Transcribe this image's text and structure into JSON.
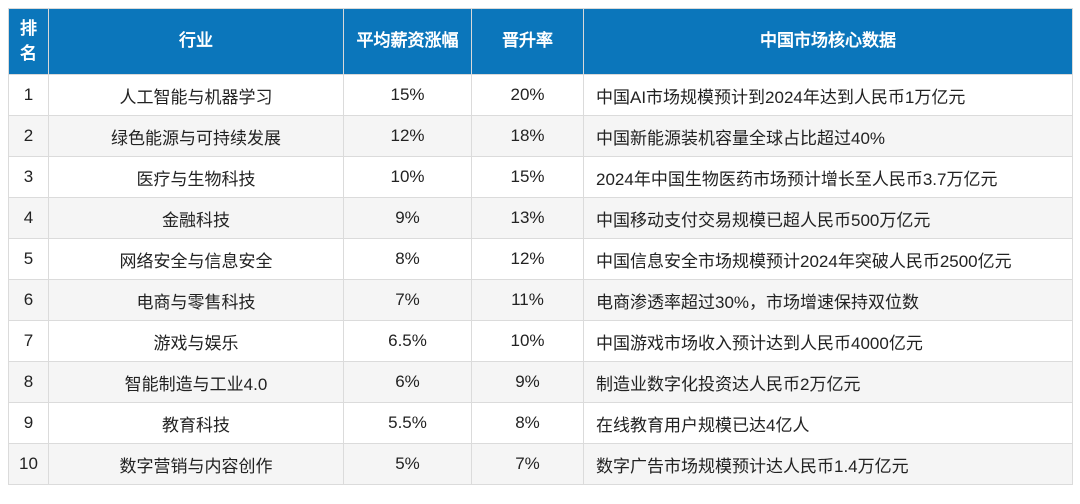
{
  "colors": {
    "header_bg": "#0B76BB",
    "header_text": "#FFFFFF",
    "row_bg": "#FFFFFF",
    "row_alt_bg": "#F5F5F5",
    "border": "#DBDBDB",
    "body_text": "#222222"
  },
  "chart_data": {
    "type": "table",
    "title": "",
    "columns": [
      "排名",
      "行业",
      "平均薪资涨幅",
      "晋升率",
      "中国市场核心数据"
    ],
    "rows": [
      [
        "1",
        "人工智能与机器学习",
        "15%",
        "20%",
        "中国AI市场规模预计到2024年达到人民币1万亿元"
      ],
      [
        "2",
        "绿色能源与可持续发展",
        "12%",
        "18%",
        "中国新能源装机容量全球占比超过40%"
      ],
      [
        "3",
        "医疗与生物科技",
        "10%",
        "15%",
        "2024年中国生物医药市场预计增长至人民币3.7万亿元"
      ],
      [
        "4",
        "金融科技",
        "9%",
        "13%",
        "中国移动支付交易规模已超人民币500万亿元"
      ],
      [
        "5",
        "网络安全与信息安全",
        "8%",
        "12%",
        "中国信息安全市场规模预计2024年突破人民币2500亿元"
      ],
      [
        "6",
        "电商与零售科技",
        "7%",
        "11%",
        "电商渗透率超过30%，市场增速保持双位数"
      ],
      [
        "7",
        "游戏与娱乐",
        "6.5%",
        "10%",
        "中国游戏市场收入预计达到人民币4000亿元"
      ],
      [
        "8",
        "智能制造与工业4.0",
        "6%",
        "9%",
        "制造业数字化投资达人民币2万亿元"
      ],
      [
        "9",
        "教育科技",
        "5.5%",
        "8%",
        "在线教育用户规模已达4亿人"
      ],
      [
        "10",
        "数字营销与内容创作",
        "5%",
        "7%",
        "数字广告市场规模预计达人民币1.4万亿元"
      ]
    ]
  }
}
